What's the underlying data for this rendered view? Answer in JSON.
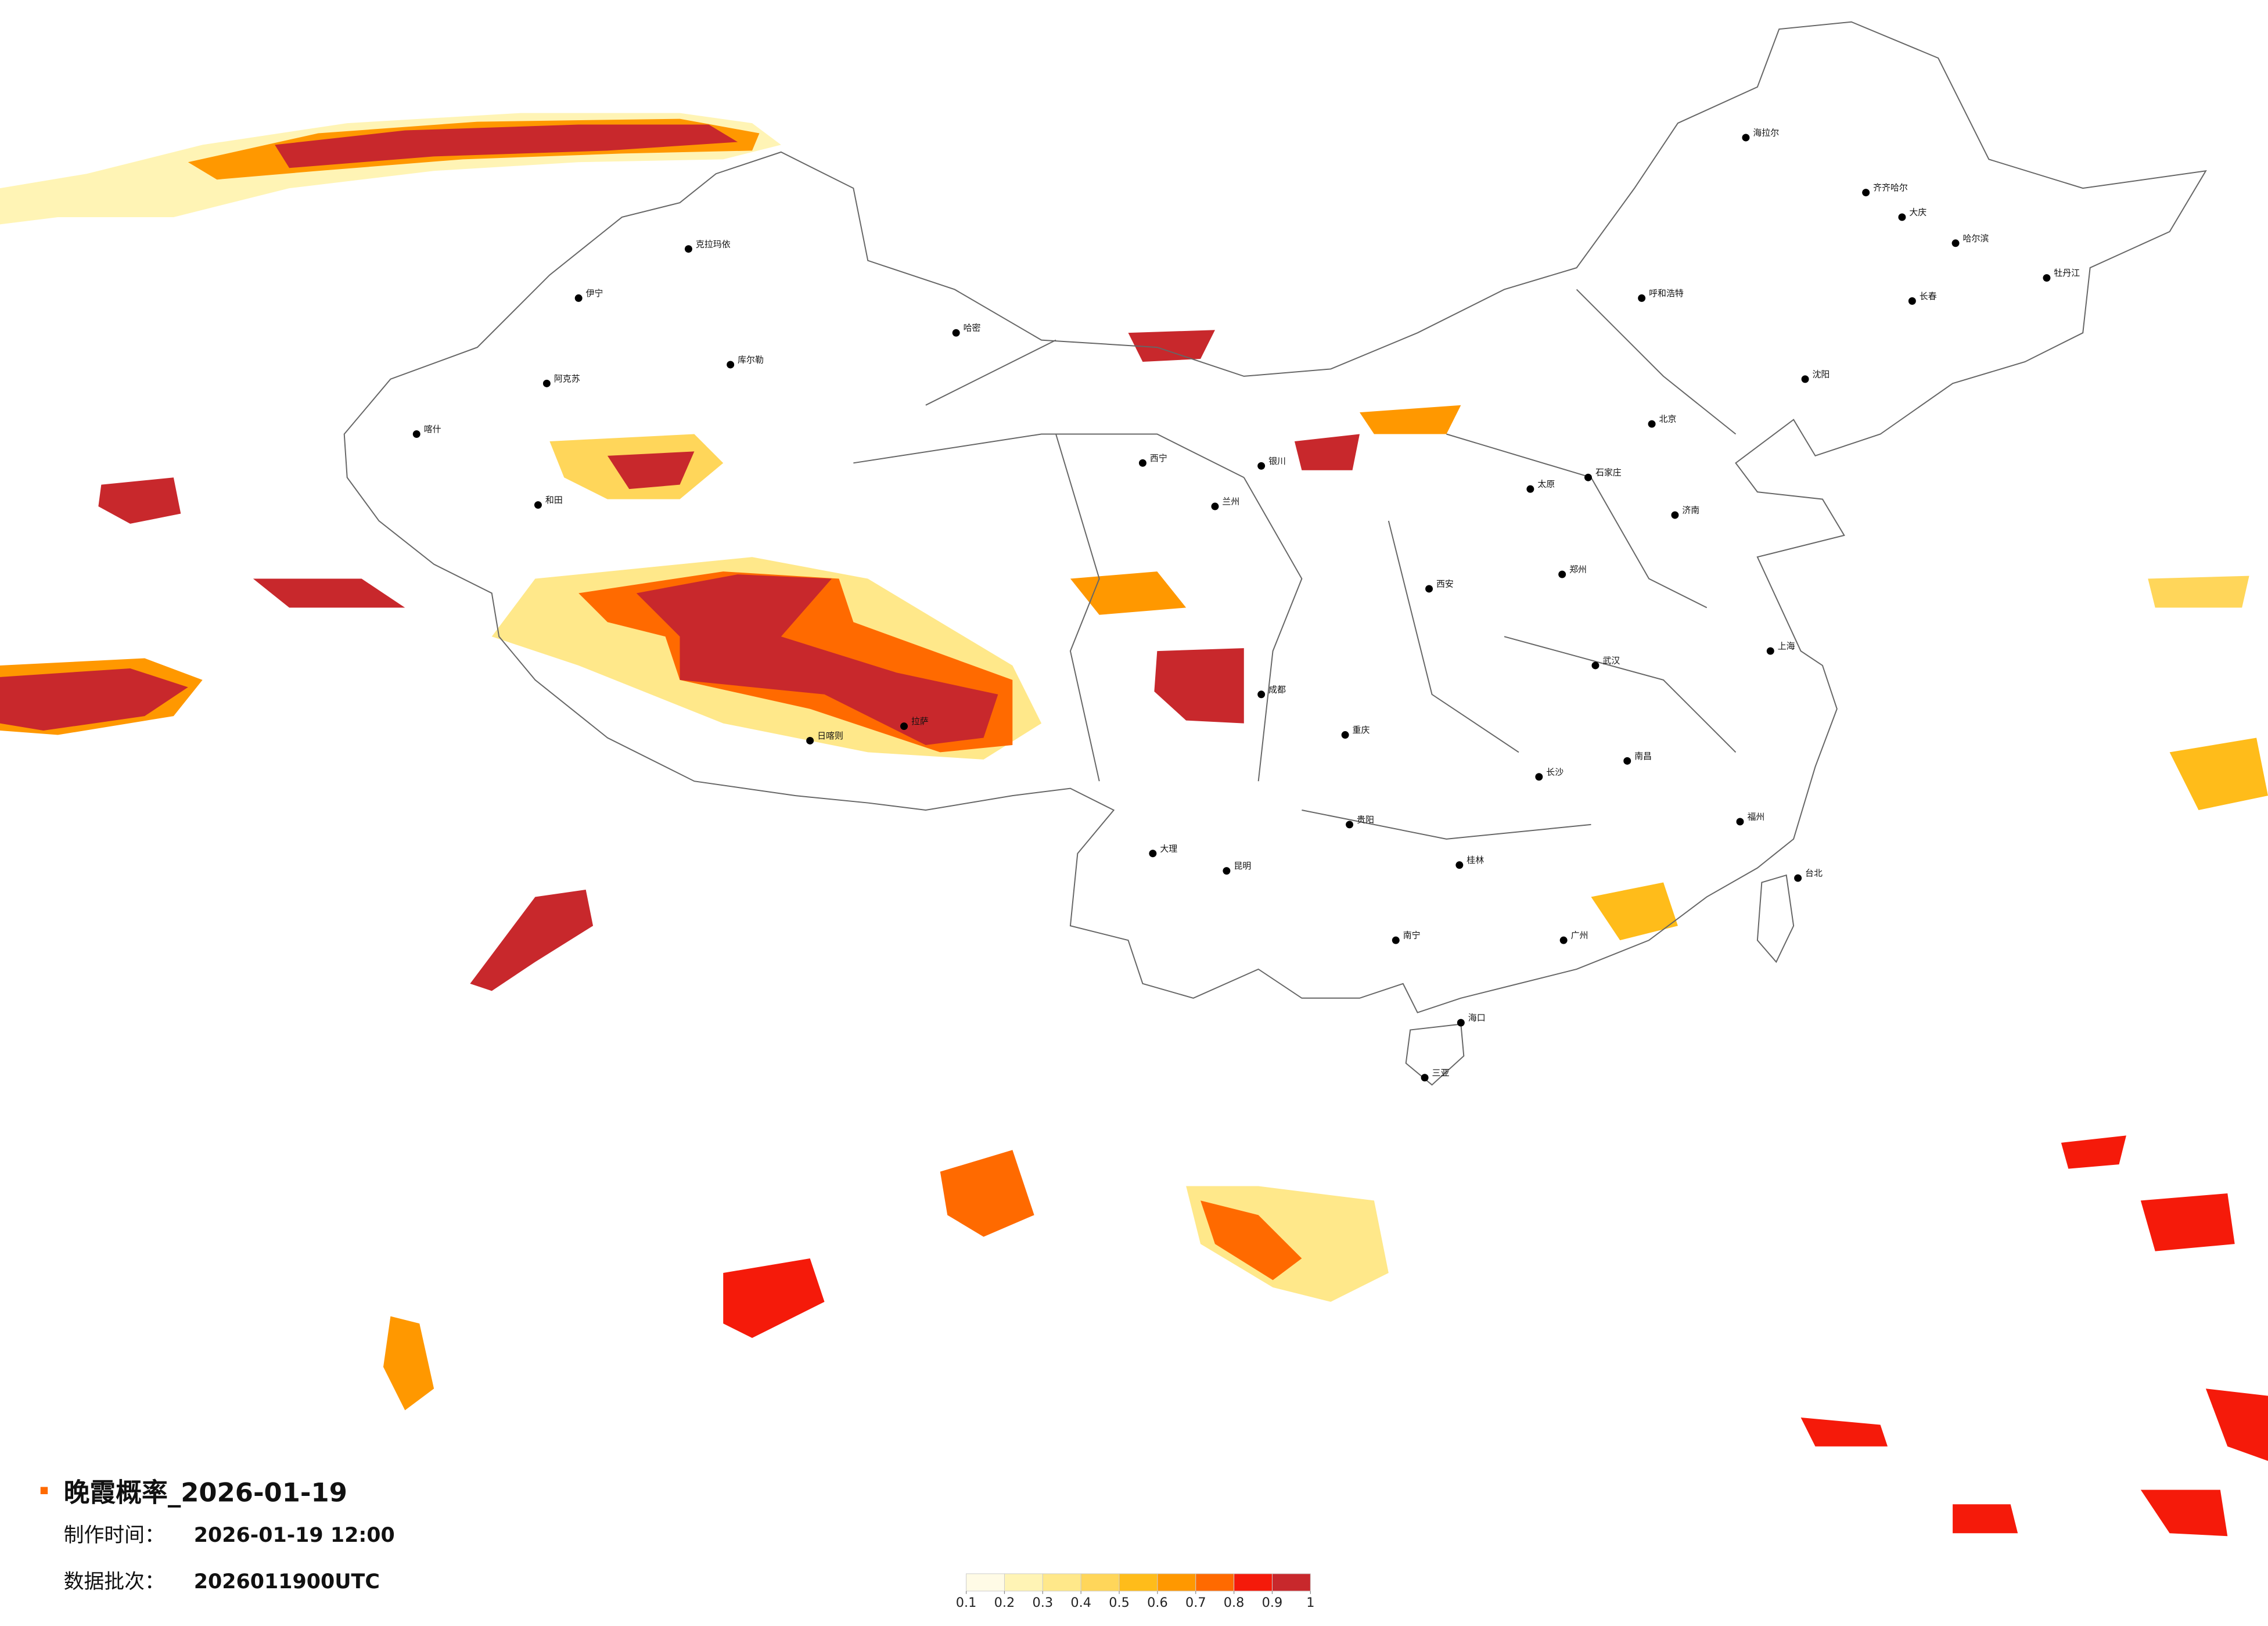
{
  "title": "晚霞概率_2026-01-19",
  "info": [
    {
      "label": "制作时间：",
      "value": "2026-01-19 12:00"
    },
    {
      "label": "数据批次：",
      "value": "2026011900UTC"
    }
  ],
  "legend": {
    "ticks": [
      0.1,
      0.2,
      0.3,
      0.4,
      0.5,
      0.6,
      0.7,
      0.8,
      0.9,
      1
    ],
    "colors": [
      "#fffbe6",
      "#fff4b5",
      "#ffe88a",
      "#ffd65a",
      "#ffbc1a",
      "#ff9800",
      "#ff6a00",
      "#f51a0a",
      "#c8282c"
    ]
  },
  "cities": [
    "哈密",
    "克拉玛依",
    "伊宁",
    "阿克苏",
    "和田",
    "喀什",
    "库尔勒",
    "日喀则",
    "拉萨",
    "西宁",
    "兰州",
    "银川",
    "呼和浩特",
    "哈尔滨",
    "长春",
    "沈阳",
    "海拉尔",
    "齐齐哈尔",
    "大庆",
    "牡丹江",
    "北京",
    "石家庄",
    "太原",
    "济南",
    "郑州",
    "西安",
    "武汉",
    "长沙",
    "南昌",
    "福州",
    "台北",
    "南宁",
    "海口",
    "三亚",
    "昆明",
    "贵阳",
    "桂林",
    "大理",
    "成都",
    "重庆",
    "上海",
    "广州"
  ]
}
